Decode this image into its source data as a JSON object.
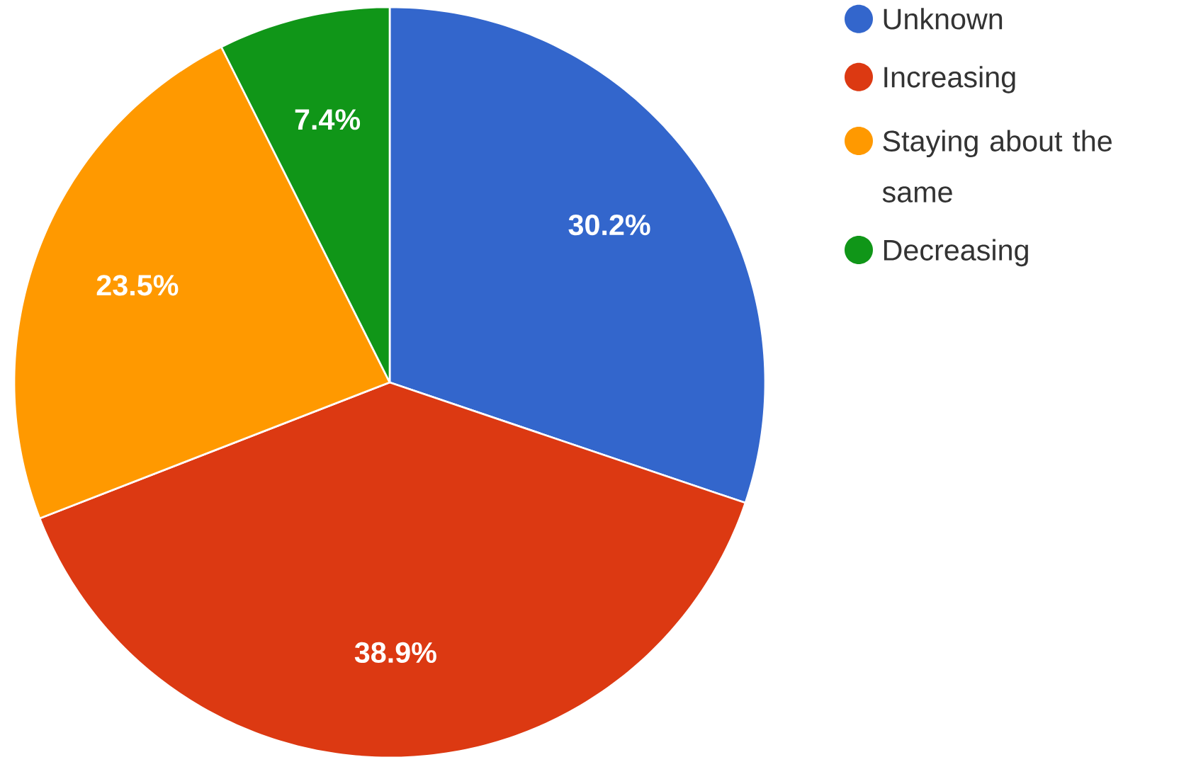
{
  "chart_data": {
    "type": "pie",
    "categories": [
      "Unknown",
      "Increasing",
      "Staying about the same",
      "Decreasing"
    ],
    "values": [
      30.2,
      38.9,
      23.5,
      7.4
    ],
    "colors": [
      "#3366cc",
      "#dc3912",
      "#ff9900",
      "#109618"
    ],
    "value_labels": [
      "30.2%",
      "38.9%",
      "23.5%",
      "7.4%"
    ],
    "legend": "top right"
  }
}
